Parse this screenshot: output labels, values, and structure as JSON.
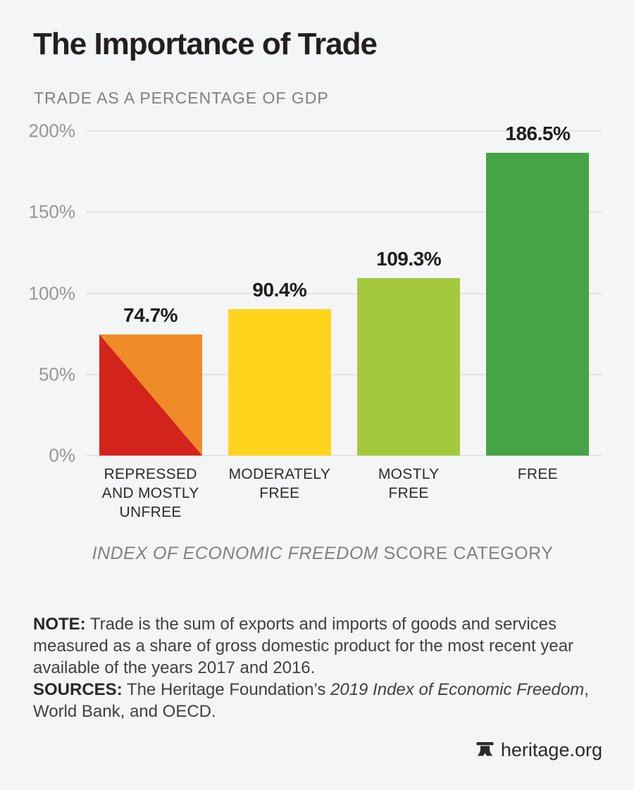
{
  "header": {
    "title": "The Importance of Trade",
    "subtitle": "TRADE AS A PERCENTAGE OF GDP"
  },
  "chart_data": {
    "type": "bar",
    "title": "The Importance of Trade",
    "subtitle": "TRADE AS A PERCENTAGE OF GDP",
    "xlabel": "INDEX OF ECONOMIC FREEDOM SCORE CATEGORY",
    "xlabel_italic_part": "INDEX OF ECONOMIC FREEDOM",
    "xlabel_regular_part": " SCORE CATEGORY",
    "ylabel": "Trade as a percentage of GDP",
    "ylim": [
      0,
      200
    ],
    "yticks": [
      {
        "value": 200,
        "label": "200%"
      },
      {
        "value": 150,
        "label": "150%"
      },
      {
        "value": 100,
        "label": "100%"
      },
      {
        "value": 50,
        "label": "50%"
      },
      {
        "value": 0,
        "label": "0%"
      }
    ],
    "grid": true,
    "legend": false,
    "categories": [
      "REPRESSED AND MOSTLY UNFREE",
      "MODERATELY FREE",
      "MOSTLY FREE",
      "FREE"
    ],
    "values": [
      74.7,
      90.4,
      109.3,
      186.5
    ],
    "bars": [
      {
        "category_lines": [
          "REPRESSED",
          "AND MOSTLY",
          "UNFREE"
        ],
        "value": 74.7,
        "data_label": "74.7%",
        "colors": [
          "#d2231c",
          "#f08b29"
        ],
        "split": "diagonal"
      },
      {
        "category_lines": [
          "MODERATELY",
          "FREE"
        ],
        "value": 90.4,
        "data_label": "90.4%",
        "colors": [
          "#ffd41c"
        ]
      },
      {
        "category_lines": [
          "MOSTLY",
          "FREE"
        ],
        "value": 109.3,
        "data_label": "109.3%",
        "colors": [
          "#a4c93c"
        ]
      },
      {
        "category_lines": [
          "FREE"
        ],
        "value": 186.5,
        "data_label": "186.5%",
        "colors": [
          "#46a346"
        ]
      }
    ]
  },
  "notes": {
    "note_label": "NOTE:",
    "note_text": " Trade is the sum of exports and imports of goods and services measured as a share of gross domestic product for the most recent year available of the years 2017 and 2016.",
    "sources_label": "SOURCES:",
    "sources_prefix": " The Heritage Foundation’s ",
    "sources_italic": "2019 Index of Economic Freedom",
    "sources_suffix": ", World Bank, and OECD."
  },
  "footer": {
    "brand": "heritage.org"
  },
  "colors": {
    "background": "#f4f5f6",
    "grid": "#e3e4e7",
    "title": "#231f20",
    "subtitle": "#7f8083",
    "tick_label": "#95969a",
    "category_label": "#2b2b2b",
    "value_label": "#1c1c1c",
    "note_text": "#414042",
    "axis_label": "#808184"
  }
}
